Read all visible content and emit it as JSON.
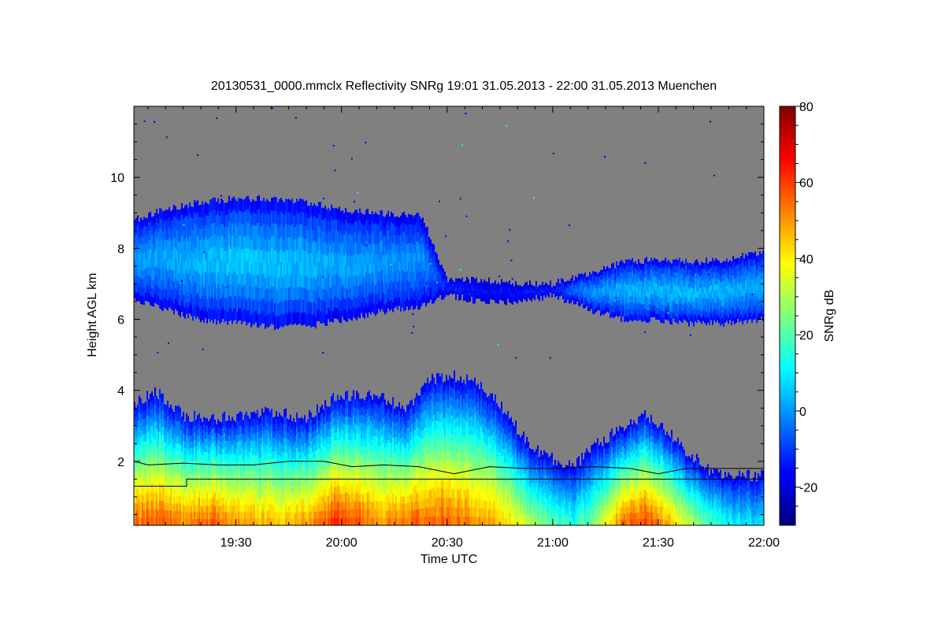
{
  "chart_data": {
    "type": "heatmap",
    "title": "20130531_0000.mmclx Reflectivity SNRg   19:01 31.05.2013 - 22:00 31.05.2013 Muenchen",
    "xlabel": "Time UTC",
    "ylabel": "Height AGL km",
    "colorbar_label": "SNRg dB",
    "x_tick_labels": [
      "19:30",
      "20:00",
      "20:30",
      "21:00",
      "21:30",
      "22:00"
    ],
    "x_tick_minutes": [
      1170,
      1200,
      1230,
      1260,
      1290,
      1320
    ],
    "xlim_minutes": [
      1141,
      1320
    ],
    "y_tick_labels": [
      "2",
      "4",
      "6",
      "8",
      "10"
    ],
    "y_tick_values": [
      2,
      4,
      6,
      8,
      10
    ],
    "ylim": [
      0.2,
      12
    ],
    "colorbar_tick_labels": [
      "-20",
      "0",
      "20",
      "40",
      "60",
      "80"
    ],
    "colorbar_tick_values": [
      -20,
      0,
      20,
      40,
      60,
      80
    ],
    "colorbar_range": [
      -30,
      80
    ],
    "colorscale": [
      "#00007f",
      "#0000ff",
      "#007fff",
      "#00ffff",
      "#7fff7f",
      "#ffff00",
      "#ff7f00",
      "#ff0000",
      "#7f0000"
    ],
    "no_signal_color": "#808080",
    "upper_cloud": {
      "x_minutes": [
        1141,
        1150,
        1160,
        1170,
        1180,
        1190,
        1200,
        1210,
        1223,
        1230,
        1240,
        1250,
        1260,
        1270,
        1280,
        1290,
        1300,
        1310,
        1320
      ],
      "top_km": [
        8.8,
        9.1,
        9.3,
        9.4,
        9.4,
        9.3,
        9.1,
        9.0,
        8.9,
        7.1,
        7.1,
        7.0,
        7.0,
        7.3,
        7.6,
        7.7,
        7.6,
        7.7,
        7.9
      ],
      "base_km": [
        6.6,
        6.3,
        6.0,
        5.9,
        5.8,
        5.8,
        6.0,
        6.2,
        6.4,
        6.7,
        6.5,
        6.5,
        6.7,
        6.3,
        6.0,
        6.0,
        5.9,
        5.9,
        6.0
      ],
      "core_snr_db": [
        2,
        3,
        5,
        7,
        6,
        5,
        3,
        2,
        0,
        -12,
        -15,
        -15,
        -13,
        0,
        4,
        5,
        5,
        4,
        3
      ]
    },
    "lower_layer": {
      "x_minutes": [
        1141,
        1147,
        1155,
        1163,
        1171,
        1181,
        1190,
        1198,
        1205,
        1211,
        1219,
        1225,
        1232,
        1239,
        1246,
        1253,
        1261,
        1266,
        1273,
        1280,
        1286,
        1292,
        1298,
        1305,
        1312,
        1320
      ],
      "top_km": [
        3.6,
        4.0,
        3.3,
        3.2,
        3.3,
        3.4,
        3.2,
        3.8,
        3.9,
        3.8,
        3.5,
        4.3,
        4.4,
        4.2,
        3.5,
        2.5,
        2.0,
        1.9,
        2.5,
        3.0,
        3.3,
        2.9,
        2.3,
        1.7,
        1.6,
        1.6
      ],
      "surface_snr_db": [
        55,
        58,
        52,
        58,
        50,
        45,
        50,
        62,
        58,
        50,
        55,
        58,
        55,
        50,
        45,
        32,
        20,
        15,
        30,
        55,
        60,
        48,
        35,
        18,
        10,
        8
      ]
    },
    "boundary_layer_line": {
      "x_minutes": [
        1141,
        1145,
        1155,
        1165,
        1175,
        1185,
        1195,
        1203,
        1212,
        1222,
        1232,
        1242,
        1252,
        1262,
        1272,
        1282,
        1290,
        1298,
        1310,
        1320
      ],
      "y_km": [
        2.0,
        1.9,
        1.95,
        1.9,
        1.9,
        2.0,
        2.0,
        1.85,
        1.9,
        1.85,
        1.65,
        1.85,
        1.8,
        1.8,
        1.85,
        1.8,
        1.65,
        1.8,
        1.8,
        1.8
      ]
    },
    "step_line": {
      "x_minutes": [
        1141,
        1156,
        1156,
        1320
      ],
      "y_km": [
        1.3,
        1.3,
        1.5,
        1.5
      ]
    }
  }
}
